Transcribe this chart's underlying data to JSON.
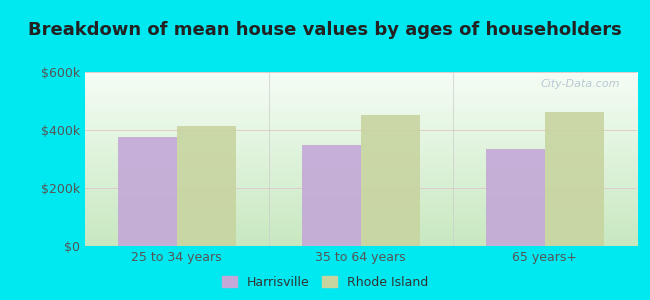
{
  "title": "Breakdown of mean house values by ages of householders",
  "categories": [
    "25 to 34 years",
    "35 to 64 years",
    "65 years+"
  ],
  "harrisville_values": [
    375000,
    350000,
    335000
  ],
  "rhode_island_values": [
    415000,
    452000,
    462000
  ],
  "harrisville_color": "#c4a8d8",
  "rhode_island_color": "#c8d4a0",
  "background_outer": "#00e8f0",
  "gradient_top": "#f5fdf5",
  "gradient_bottom": "#c8e8c0",
  "ylim": [
    0,
    600000
  ],
  "yticks": [
    0,
    200000,
    400000,
    600000
  ],
  "ytick_labels": [
    "$0",
    "$200k",
    "$400k",
    "$600k"
  ],
  "legend_harrisville": "Harrisville",
  "legend_rhode_island": "Rhode Island",
  "bar_width": 0.32,
  "title_fontsize": 13,
  "tick_fontsize": 9,
  "legend_fontsize": 9,
  "watermark": "City-Data.com"
}
